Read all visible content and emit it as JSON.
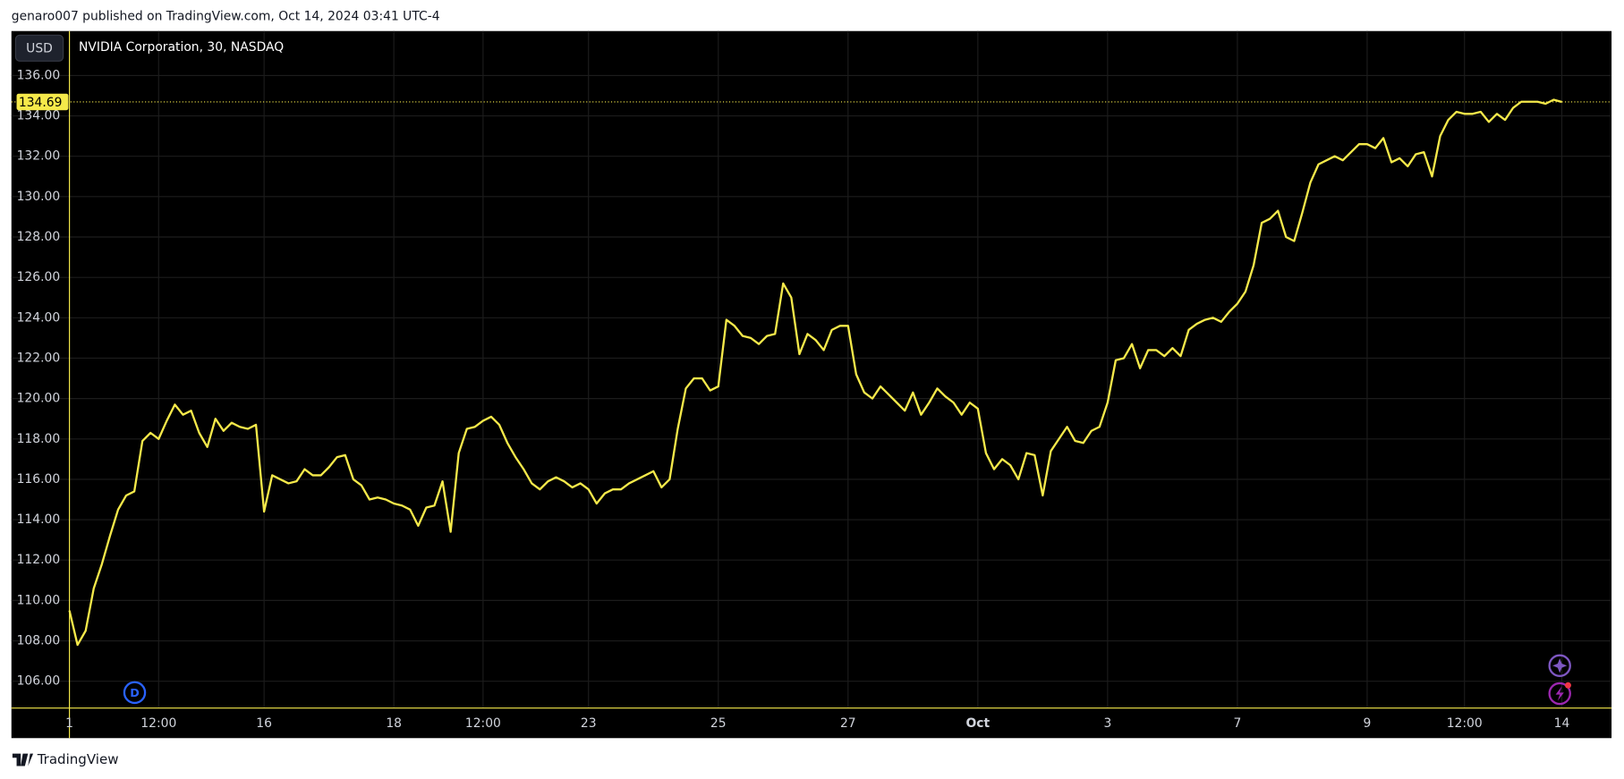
{
  "header": {
    "text": "genaro007 published on TradingView.com, Oct 14, 2024 03:41 UTC-4"
  },
  "footer": {
    "brand": "TradingView"
  },
  "chart_data": {
    "type": "line",
    "title": "NVIDIA Corporation, 30, NASDAQ",
    "currency": "USD",
    "badge": "D",
    "color": "#f5e94a",
    "categories": [
      "1",
      null,
      null,
      null,
      null,
      null,
      null,
      null,
      null,
      null,
      null,
      "12:00",
      null,
      null,
      null,
      null,
      null,
      null,
      null,
      null,
      null,
      null,
      null,
      null,
      "16",
      null,
      null,
      null,
      null,
      null,
      null,
      null,
      null,
      null,
      null,
      null,
      null,
      null,
      null,
      null,
      "18",
      null,
      null,
      null,
      null,
      null,
      null,
      null,
      null,
      null,
      null,
      "12:00",
      null,
      null,
      null,
      null,
      null,
      null,
      null,
      null,
      null,
      null,
      null,
      null,
      "23",
      null,
      null,
      null,
      null,
      null,
      null,
      null,
      null,
      null,
      null,
      null,
      null,
      null,
      null,
      null,
      "25",
      null,
      null,
      null,
      null,
      null,
      null,
      null,
      null,
      null,
      null,
      null,
      null,
      null,
      null,
      null,
      "27",
      null,
      null,
      null,
      null,
      null,
      null,
      null,
      null,
      null,
      null,
      null,
      null,
      null,
      null,
      null,
      "Oct",
      null,
      null,
      null,
      null,
      null,
      null,
      null,
      null,
      null,
      null,
      null,
      null,
      null,
      null,
      null,
      "3",
      null,
      null,
      null,
      null,
      null,
      null,
      null,
      null,
      null,
      null,
      null,
      null,
      null,
      null,
      null,
      "7",
      null,
      null,
      null,
      null,
      null,
      null,
      null,
      null,
      null,
      null,
      null,
      null,
      null,
      null,
      null,
      "9",
      null,
      null,
      null,
      null,
      null,
      null,
      null,
      null,
      null,
      null,
      null,
      "12:00",
      null,
      null,
      null,
      null,
      null,
      null,
      null,
      null,
      null,
      null,
      null,
      "14"
    ],
    "values": [
      109.5,
      107.8,
      108.5,
      110.6,
      111.8,
      113.2,
      114.5,
      115.2,
      115.4,
      117.9,
      118.3,
      118.0,
      118.9,
      119.7,
      119.2,
      119.4,
      118.3,
      117.6,
      119.0,
      118.4,
      118.8,
      118.6,
      118.5,
      118.7,
      114.4,
      116.2,
      116.0,
      115.8,
      115.9,
      116.5,
      116.2,
      116.2,
      116.6,
      117.1,
      117.2,
      116.0,
      115.7,
      115.0,
      115.1,
      115.0,
      114.8,
      114.7,
      114.5,
      113.7,
      114.6,
      114.7,
      115.9,
      113.4,
      117.3,
      118.5,
      118.6,
      118.9,
      119.1,
      118.7,
      117.8,
      117.1,
      116.5,
      115.8,
      115.5,
      115.9,
      116.1,
      115.9,
      115.6,
      115.8,
      115.5,
      114.8,
      115.3,
      115.5,
      115.5,
      115.8,
      116.0,
      116.2,
      116.4,
      115.6,
      116.0,
      118.5,
      120.5,
      121.0,
      121.0,
      120.4,
      120.6,
      123.9,
      123.6,
      123.1,
      123.0,
      122.7,
      123.1,
      123.2,
      125.7,
      125.0,
      122.2,
      123.2,
      122.9,
      122.4,
      123.4,
      123.6,
      123.6,
      121.2,
      120.3,
      120.0,
      120.6,
      120.2,
      119.8,
      119.4,
      120.3,
      119.2,
      119.8,
      120.5,
      120.1,
      119.8,
      119.2,
      119.8,
      119.5,
      117.3,
      116.5,
      117.0,
      116.7,
      116.0,
      117.3,
      117.2,
      115.2,
      117.4,
      118.0,
      118.6,
      117.9,
      117.8,
      118.4,
      118.6,
      119.8,
      121.9,
      122.0,
      122.7,
      121.5,
      122.4,
      122.4,
      122.1,
      122.5,
      122.1,
      123.4,
      123.7,
      123.9,
      124.0,
      123.8,
      124.3,
      124.7,
      125.3,
      126.6,
      128.7,
      128.9,
      129.3,
      128.0,
      127.8,
      129.2,
      130.7,
      131.6,
      131.8,
      132.0,
      131.8,
      132.2,
      132.6,
      132.6,
      132.4,
      132.9,
      131.7,
      131.9,
      131.5,
      132.1,
      132.2,
      131.0,
      133.0,
      133.8,
      134.2,
      134.1,
      134.1,
      134.2,
      133.7,
      134.1,
      133.8,
      134.4,
      134.7,
      134.7,
      134.7,
      134.6,
      134.8,
      134.69
    ],
    "ylim": [
      104.67,
      138.2
    ],
    "yticks": [
      {
        "value": 106,
        "label": "106.00"
      },
      {
        "value": 108,
        "label": "108.00"
      },
      {
        "value": 110,
        "label": "110.00"
      },
      {
        "value": 112,
        "label": "112.00"
      },
      {
        "value": 114,
        "label": "114.00"
      },
      {
        "value": 116,
        "label": "116.00"
      },
      {
        "value": 118,
        "label": "118.00"
      },
      {
        "value": 120,
        "label": "120.00"
      },
      {
        "value": 122,
        "label": "122.00"
      },
      {
        "value": 124,
        "label": "124.00"
      },
      {
        "value": 126,
        "label": "126.00"
      },
      {
        "value": 128,
        "label": "128.00"
      },
      {
        "value": 130,
        "label": "130.00"
      },
      {
        "value": 132,
        "label": "132.00"
      },
      {
        "value": 134,
        "label": "134.00"
      },
      {
        "value": 136,
        "label": "136.00"
      }
    ],
    "grid": true
  }
}
